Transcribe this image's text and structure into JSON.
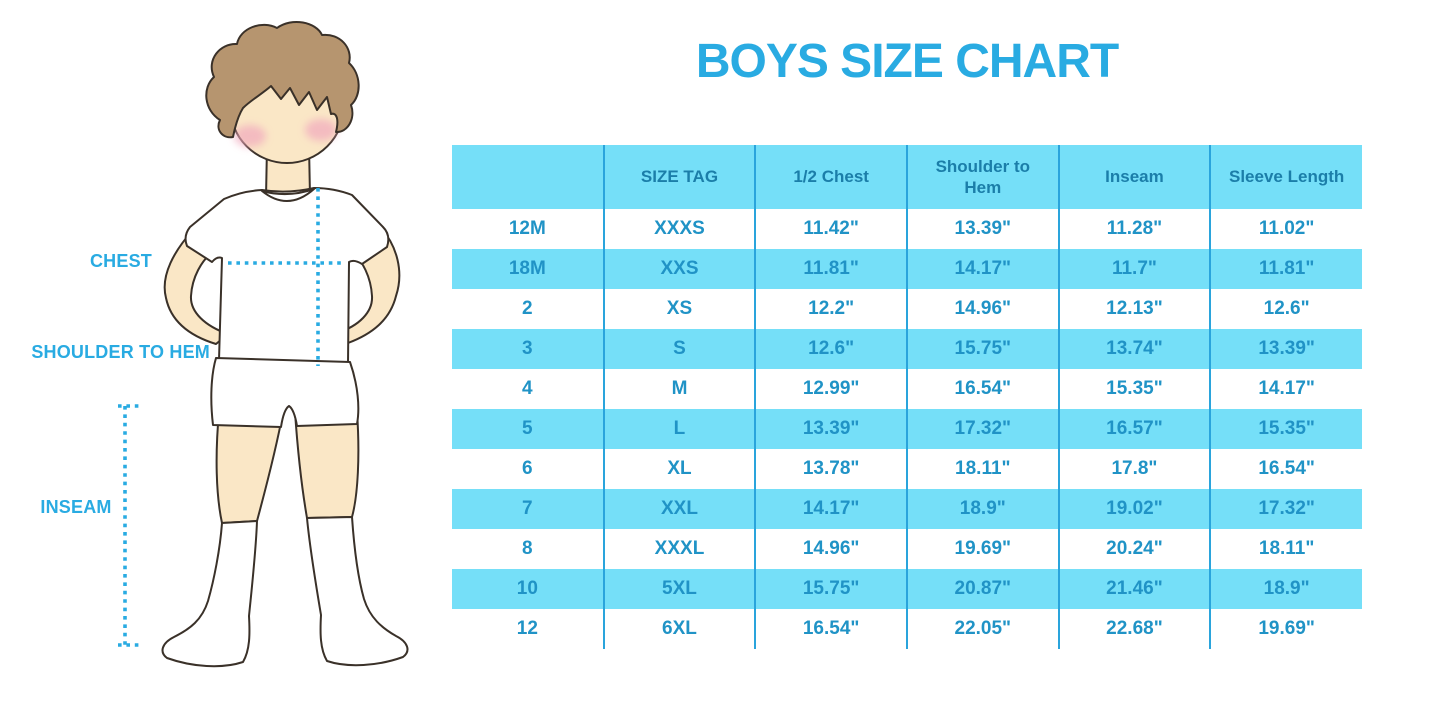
{
  "title": "BOYS SIZE CHART",
  "figure_labels": {
    "chest": "CHEST",
    "shoulder_to_hem": "SHOULDER TO HEM",
    "inseam": "INSEAM"
  },
  "colors": {
    "accent_blue": "#29ABE2",
    "row_band": "#75DFF8",
    "divider": "#2AA4DC",
    "header_text": "#1B7EA9",
    "cell_text": "#2093C6",
    "skin": "#FAE7C6",
    "hair": "#B6956F",
    "outline": "#3A3129",
    "blush": "#F1A9BE",
    "clothes": "#FFFFFF"
  },
  "chart_data": {
    "type": "table",
    "title": "BOYS SIZE CHART",
    "columns": [
      "",
      "SIZE TAG",
      "1/2 Chest",
      "Shoulder to Hem",
      "Inseam",
      "Sleeve Length"
    ],
    "rows": [
      [
        "12M",
        "XXXS",
        "11.42\"",
        "13.39\"",
        "11.28\"",
        "11.02\""
      ],
      [
        "18M",
        "XXS",
        "11.81\"",
        "14.17\"",
        "11.7\"",
        "11.81\""
      ],
      [
        "2",
        "XS",
        "12.2\"",
        "14.96\"",
        "12.13\"",
        "12.6\""
      ],
      [
        "3",
        "S",
        "12.6\"",
        "15.75\"",
        "13.74\"",
        "13.39\""
      ],
      [
        "4",
        "M",
        "12.99\"",
        "16.54\"",
        "15.35\"",
        "14.17\""
      ],
      [
        "5",
        "L",
        "13.39\"",
        "17.32\"",
        "16.57\"",
        "15.35\""
      ],
      [
        "6",
        "XL",
        "13.78\"",
        "18.11\"",
        "17.8\"",
        "16.54\""
      ],
      [
        "7",
        "XXL",
        "14.17\"",
        "18.9\"",
        "19.02\"",
        "17.32\""
      ],
      [
        "8",
        "XXXL",
        "14.96\"",
        "19.69\"",
        "20.24\"",
        "18.11\""
      ],
      [
        "10",
        "5XL",
        "15.75\"",
        "20.87\"",
        "21.46\"",
        "18.9\""
      ],
      [
        "12",
        "6XL",
        "16.54\"",
        "22.05\"",
        "22.68\"",
        "19.69\""
      ]
    ],
    "shaded_row_indices": [
      1,
      3,
      5,
      7,
      9
    ],
    "header_shaded": true,
    "grid": "vertical-dividers-only"
  }
}
